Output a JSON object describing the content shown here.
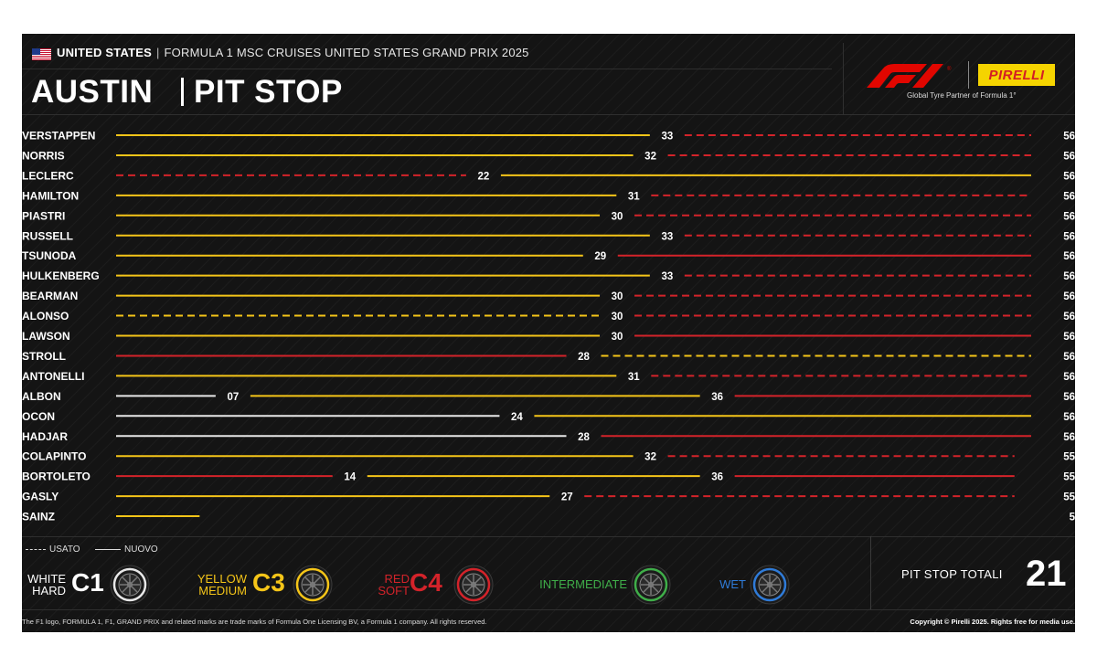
{
  "header": {
    "country": "UNITED STATES",
    "separator": "|",
    "event": "FORMULA 1 MSC CRUISES UNITED STATES GRAND PRIX 2025",
    "city": "AUSTIN",
    "title": "PIT STOP",
    "flag_icon": "us-flag-icon"
  },
  "logos": {
    "f1_icon": "f1-logo-icon",
    "pirelli": "PIRELLI",
    "partner_text": "Global Tyre Partner of Formula 1°"
  },
  "colors": {
    "background": "#141414",
    "hard": "#e8e8e8",
    "medium": "#f5c518",
    "soft": "#d4232a",
    "intermediate": "#3fae49",
    "wet": "#2f7bd8"
  },
  "chart_data": {
    "type": "stint-timeline",
    "x_unit": "lap",
    "xlim": [
      0,
      56
    ],
    "drivers": [
      {
        "name": "VERSTAPPEN",
        "stints": [
          {
            "end": 33,
            "compound": "medium",
            "used": false
          },
          {
            "end": 56,
            "compound": "soft",
            "used": true
          }
        ]
      },
      {
        "name": "NORRIS",
        "stints": [
          {
            "end": 32,
            "compound": "medium",
            "used": false
          },
          {
            "end": 56,
            "compound": "soft",
            "used": true
          }
        ]
      },
      {
        "name": "LECLERC",
        "stints": [
          {
            "end": 22,
            "compound": "soft",
            "used": true
          },
          {
            "end": 56,
            "compound": "medium",
            "used": false
          }
        ]
      },
      {
        "name": "HAMILTON",
        "stints": [
          {
            "end": 31,
            "compound": "medium",
            "used": false
          },
          {
            "end": 56,
            "compound": "soft",
            "used": true
          }
        ]
      },
      {
        "name": "PIASTRI",
        "stints": [
          {
            "end": 30,
            "compound": "medium",
            "used": false
          },
          {
            "end": 56,
            "compound": "soft",
            "used": true
          }
        ]
      },
      {
        "name": "RUSSELL",
        "stints": [
          {
            "end": 33,
            "compound": "medium",
            "used": false
          },
          {
            "end": 56,
            "compound": "soft",
            "used": true
          }
        ]
      },
      {
        "name": "TSUNODA",
        "stints": [
          {
            "end": 29,
            "compound": "medium",
            "used": false
          },
          {
            "end": 56,
            "compound": "soft",
            "used": false
          }
        ]
      },
      {
        "name": "HULKENBERG",
        "stints": [
          {
            "end": 33,
            "compound": "medium",
            "used": false
          },
          {
            "end": 56,
            "compound": "soft",
            "used": true
          }
        ]
      },
      {
        "name": "BEARMAN",
        "stints": [
          {
            "end": 30,
            "compound": "medium",
            "used": false
          },
          {
            "end": 56,
            "compound": "soft",
            "used": true
          }
        ]
      },
      {
        "name": "ALONSO",
        "stints": [
          {
            "end": 30,
            "compound": "medium",
            "used": true
          },
          {
            "end": 56,
            "compound": "soft",
            "used": true
          }
        ]
      },
      {
        "name": "LAWSON",
        "stints": [
          {
            "end": 30,
            "compound": "medium",
            "used": false
          },
          {
            "end": 56,
            "compound": "soft",
            "used": false
          }
        ]
      },
      {
        "name": "STROLL",
        "stints": [
          {
            "end": 28,
            "compound": "soft",
            "used": false
          },
          {
            "end": 56,
            "compound": "medium",
            "used": true
          }
        ]
      },
      {
        "name": "ANTONELLI",
        "stints": [
          {
            "end": 31,
            "compound": "medium",
            "used": false
          },
          {
            "end": 56,
            "compound": "soft",
            "used": true
          }
        ]
      },
      {
        "name": "ALBON",
        "stints": [
          {
            "end": 7,
            "compound": "hard",
            "used": false
          },
          {
            "end": 36,
            "compound": "medium",
            "used": false
          },
          {
            "end": 56,
            "compound": "soft",
            "used": false
          }
        ]
      },
      {
        "name": "OCON",
        "stints": [
          {
            "end": 24,
            "compound": "hard",
            "used": false
          },
          {
            "end": 56,
            "compound": "medium",
            "used": false
          }
        ]
      },
      {
        "name": "HADJAR",
        "stints": [
          {
            "end": 28,
            "compound": "hard",
            "used": false
          },
          {
            "end": 56,
            "compound": "soft",
            "used": false
          }
        ]
      },
      {
        "name": "COLAPINTO",
        "stints": [
          {
            "end": 32,
            "compound": "medium",
            "used": false
          },
          {
            "end": 55,
            "compound": "soft",
            "used": true
          }
        ]
      },
      {
        "name": "BORTOLETO",
        "stints": [
          {
            "end": 14,
            "compound": "soft",
            "used": false
          },
          {
            "end": 36,
            "compound": "medium",
            "used": false
          },
          {
            "end": 55,
            "compound": "soft",
            "used": false
          }
        ]
      },
      {
        "name": "GASLY",
        "stints": [
          {
            "end": 27,
            "compound": "medium",
            "used": false
          },
          {
            "end": 55,
            "compound": "soft",
            "used": true
          }
        ]
      },
      {
        "name": "SAINZ",
        "stints": [
          {
            "end": 5,
            "compound": "medium",
            "used": false
          }
        ]
      }
    ],
    "lap_labels": [
      [
        "33",
        "56"
      ],
      [
        "32",
        "56"
      ],
      [
        "22",
        "56"
      ],
      [
        "31",
        "56"
      ],
      [
        "30",
        "56"
      ],
      [
        "33",
        "56"
      ],
      [
        "29",
        "56"
      ],
      [
        "33",
        "56"
      ],
      [
        "30",
        "56"
      ],
      [
        "30",
        "56"
      ],
      [
        "30",
        "56"
      ],
      [
        "28",
        "56"
      ],
      [
        "31",
        "56"
      ],
      [
        "07",
        "36",
        "56"
      ],
      [
        "24",
        "56"
      ],
      [
        "28",
        "56"
      ],
      [
        "32",
        "55"
      ],
      [
        "14",
        "36",
        "55"
      ],
      [
        "27",
        "55"
      ],
      [
        "5"
      ]
    ]
  },
  "legend": {
    "used": "USATO",
    "new": "NUOVO"
  },
  "tyres": [
    {
      "label_top": "WHITE",
      "label_bottom": "HARD",
      "code": "C1",
      "color": "#e8e8e8",
      "code_color": "#ffffff"
    },
    {
      "label_top": "YELLOW",
      "label_bottom": "MEDIUM",
      "code": "C3",
      "color": "#f5c518",
      "code_color": "#f5c518"
    },
    {
      "label_top": "RED",
      "label_bottom": "SOFT",
      "code": "C4",
      "color": "#d4232a",
      "code_color": "#d4232a"
    },
    {
      "label_top": "INTERMEDIATE",
      "label_bottom": "",
      "code": "",
      "color": "#3fae49",
      "code_color": "#3fae49"
    },
    {
      "label_top": "WET",
      "label_bottom": "",
      "code": "",
      "color": "#2f7bd8",
      "code_color": "#2f7bd8"
    }
  ],
  "totals": {
    "label": "PIT STOP TOTALI",
    "value": "21"
  },
  "footer": {
    "left": "The F1 logo, FORMULA 1, F1, GRAND PRIX and related marks are trade marks of Formula One Licensing BV, a Formula 1 company. All rights reserved.",
    "right": "Copyright © Pirelli 2025. Rights free for media use."
  }
}
